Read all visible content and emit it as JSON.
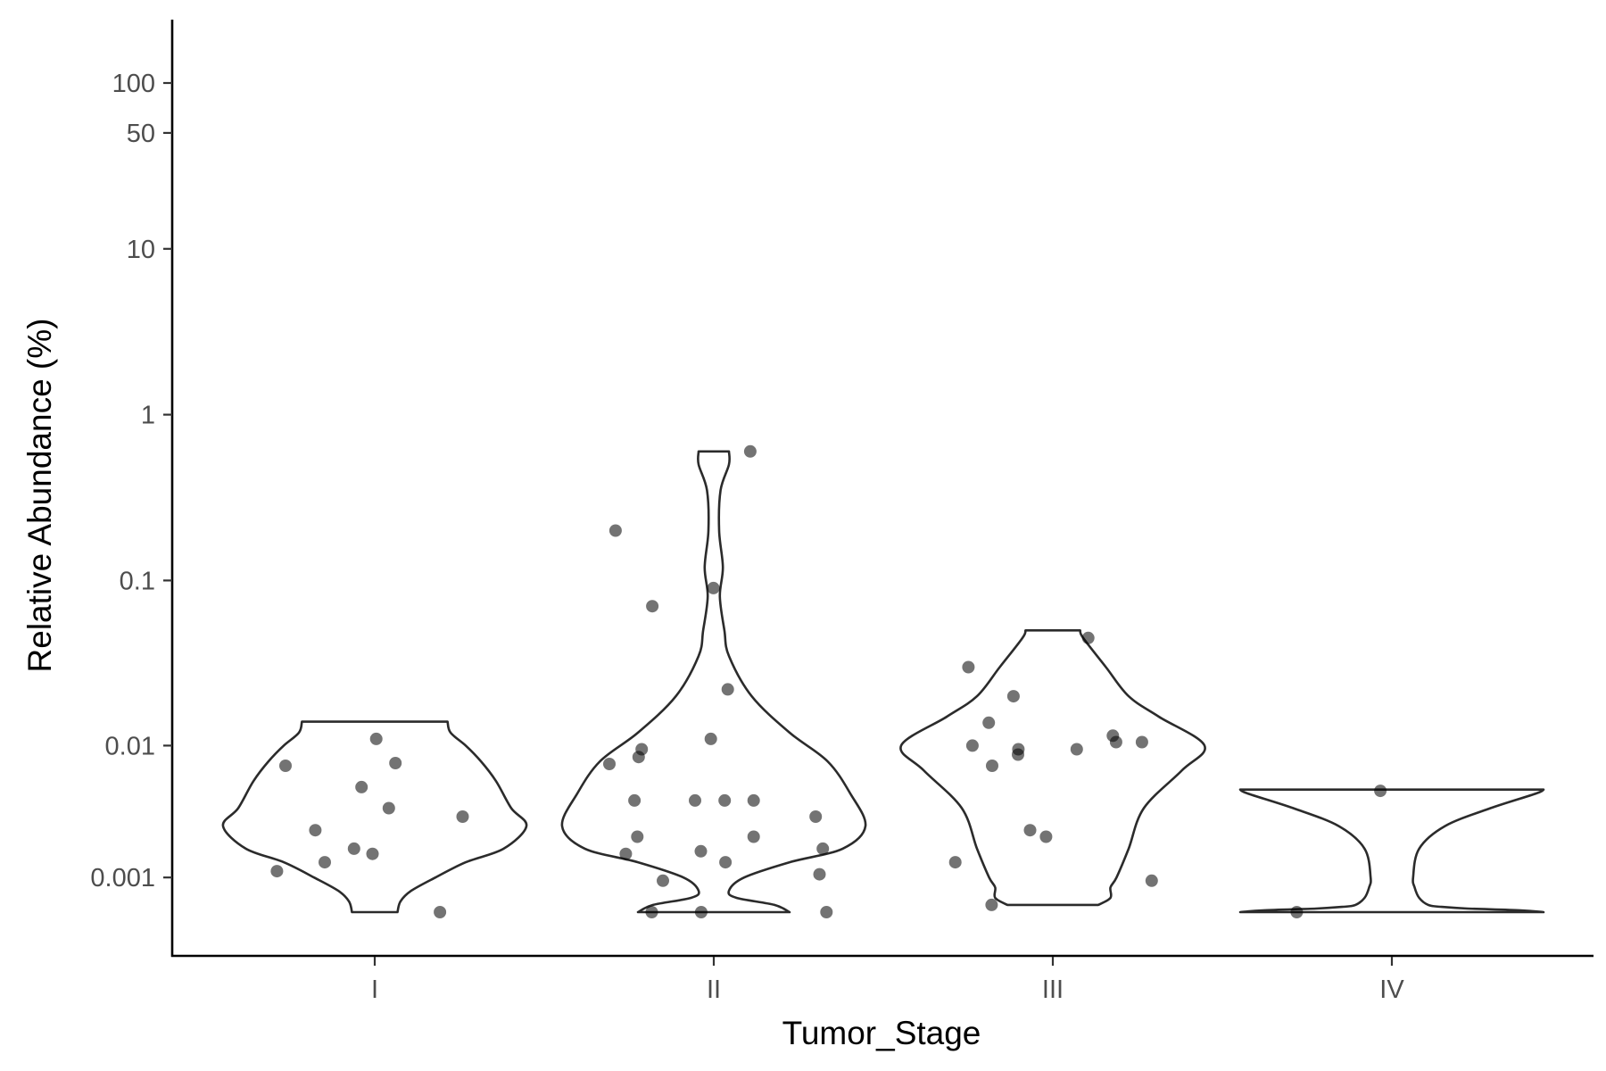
{
  "chart_data": {
    "type": "violin",
    "xlabel": "Tumor_Stage",
    "ylabel": "Relative Abundance (%)",
    "categories": [
      "I",
      "II",
      "III",
      "IV"
    ],
    "y_scale": "pseudo-log",
    "y_ticks": [
      {
        "value": 0.001,
        "label": "0.001"
      },
      {
        "value": 0.01,
        "label": "0.01"
      },
      {
        "value": 0.1,
        "label": "0.1"
      },
      {
        "value": 1,
        "label": "1"
      },
      {
        "value": 10,
        "label": "10"
      },
      {
        "value": 50,
        "label": "50"
      },
      {
        "value": 100,
        "label": "100"
      }
    ],
    "ylim": [
      0,
      150
    ],
    "grid": false,
    "groups": [
      {
        "category": "I",
        "points": [
          0.0018,
          0.004,
          0.0075,
          0.0028,
          0.0055,
          0.011,
          0.0012,
          0.0035,
          0.0078,
          0.002,
          0.0015,
          0
        ],
        "violin": {
          "y": [
            0,
            0.0003,
            0.0006,
            0.001,
            0.0015,
            0.002,
            0.003,
            0.004,
            0.006,
            0.008,
            0.01,
            0.012,
            0.014
          ],
          "width": [
            0.15,
            0.17,
            0.24,
            0.4,
            0.6,
            0.85,
            1.0,
            0.9,
            0.8,
            0.7,
            0.6,
            0.5,
            0.48
          ]
        }
      },
      {
        "category": "II",
        "points": [
          0.6,
          0.2,
          0.09,
          0.07,
          0.0045,
          0.0045,
          0.022,
          0.011,
          0.0085,
          0.0077,
          0.0035,
          0.002,
          0.0018,
          0.0019,
          0.0011,
          0.0095,
          0.0045,
          0.0015,
          0.0025,
          0.0009,
          0.0025,
          0,
          0,
          0,
          0.0045
        ],
        "violin": {
          "y": [
            0,
            0.0002,
            0.0004,
            0.0006,
            0.001,
            0.0015,
            0.002,
            0.003,
            0.005,
            0.008,
            0.012,
            0.02,
            0.035,
            0.05,
            0.08,
            0.12,
            0.2,
            0.35,
            0.5,
            0.6
          ],
          "width": [
            0.5,
            0.4,
            0.15,
            0.1,
            0.2,
            0.5,
            0.85,
            1.0,
            0.9,
            0.75,
            0.5,
            0.25,
            0.1,
            0.07,
            0.04,
            0.06,
            0.035,
            0.045,
            0.1,
            0.1
          ]
        }
      },
      {
        "category": "III",
        "points": [
          0.02,
          0.01,
          0.0105,
          0.0095,
          0.0088,
          0.0015,
          0.0009,
          0.0075,
          0.0105,
          0.0025,
          0.0002,
          0.0095,
          0.0028,
          0.0115,
          0.045,
          0.03,
          0.0138
        ],
        "violin": {
          "y": [
            0.0002,
            0.0004,
            0.0007,
            0.001,
            0.002,
            0.004,
            0.007,
            0.01,
            0.015,
            0.02,
            0.03,
            0.045,
            0.05
          ],
          "width": [
            0.3,
            0.38,
            0.38,
            0.42,
            0.5,
            0.6,
            0.85,
            1.0,
            0.7,
            0.5,
            0.35,
            0.2,
            0.18
          ]
        }
      },
      {
        "category": "IV",
        "points": [
          0.0052,
          0
        ],
        "violin": {
          "y": [
            0,
            5e-05,
            0.0001,
            0.00015,
            0.0002,
            0.0004,
            0.0007,
            0.001,
            0.002,
            0.003,
            0.004,
            0.005,
            0.0053
          ],
          "width": [
            1.0,
            0.85,
            0.5,
            0.32,
            0.24,
            0.18,
            0.15,
            0.14,
            0.18,
            0.35,
            0.65,
            0.95,
            1.0
          ]
        }
      }
    ]
  }
}
